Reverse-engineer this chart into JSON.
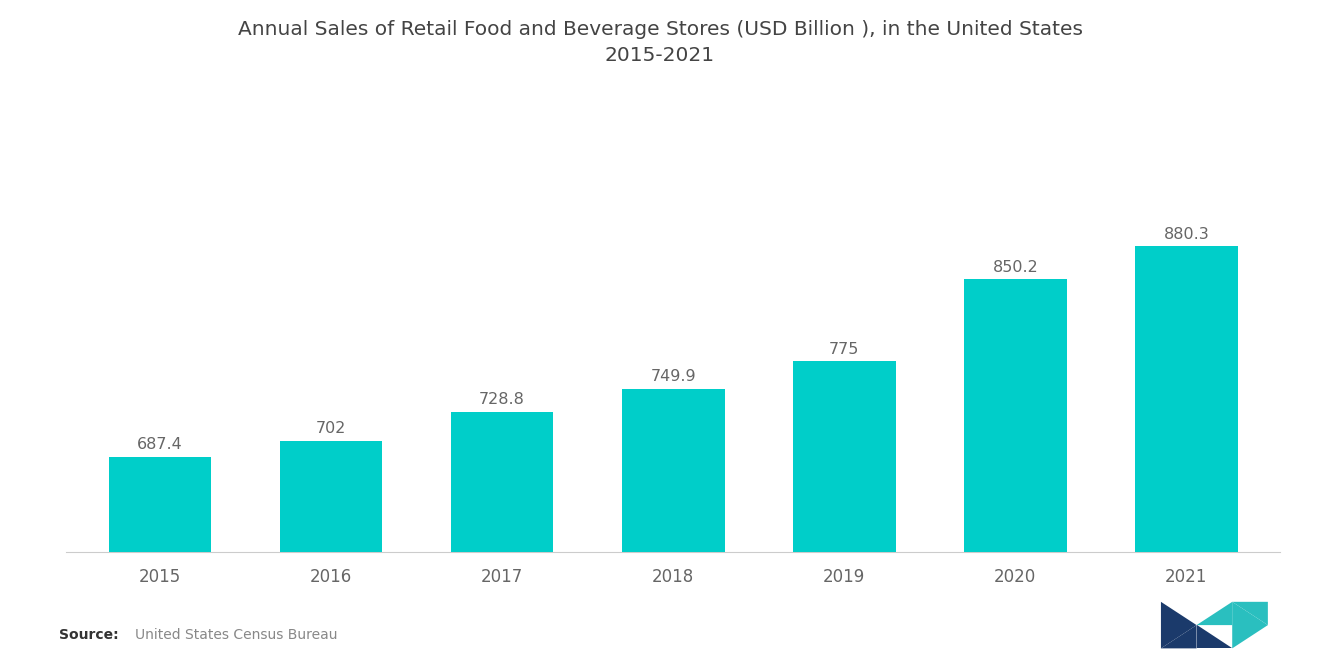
{
  "title_line1": "Annual Sales of Retail Food and Beverage Stores (USD Billion ), in the United States",
  "title_line2": "2015-2021",
  "categories": [
    "2015",
    "2016",
    "2017",
    "2018",
    "2019",
    "2020",
    "2021"
  ],
  "values": [
    687.4,
    702,
    728.8,
    749.9,
    775,
    850.2,
    880.3
  ],
  "bar_color": "#00CEC9",
  "background_color": "#FFFFFF",
  "title_color": "#444444",
  "label_color": "#666666",
  "source_bold": "Source:",
  "source_text": "United States Census Bureau",
  "source_color": "#888888",
  "bar_width": 0.6,
  "ylim_min": 600,
  "ylim_max": 960,
  "value_label_fontsize": 11.5,
  "axis_label_fontsize": 12,
  "title_fontsize": 14.5
}
